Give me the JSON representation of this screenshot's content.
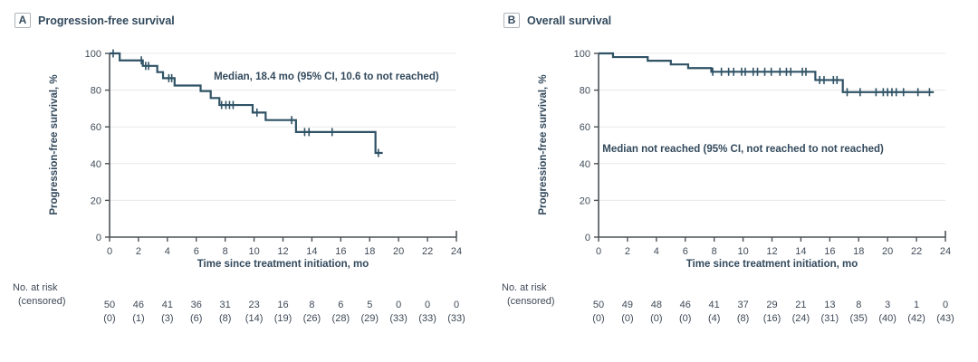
{
  "chart_data": [
    {
      "type": "line",
      "subtype": "kaplan_meier_step",
      "panel_label": "A",
      "title": "Progression-free survival",
      "annotation": "Median, 18.4 mo (95% CI, 10.6 to not reached)",
      "annotation_anchor": {
        "x_mo": 15.0,
        "y_pct": 87
      },
      "xlabel": "Time since treatment initiation, mo",
      "ylabel": "Progression-free survival, %",
      "xlim": [
        0,
        24
      ],
      "ylim": [
        0,
        100
      ],
      "xticks": [
        0,
        2,
        4,
        6,
        8,
        10,
        12,
        14,
        16,
        18,
        20,
        22,
        24
      ],
      "yticks": [
        0,
        20,
        40,
        60,
        80,
        100
      ],
      "grid": "horizontal",
      "legend": "none",
      "line_color": "#2f5265",
      "steps": [
        [
          0,
          100
        ],
        [
          0.7,
          96.2
        ],
        [
          2.3,
          93.2
        ],
        [
          3.3,
          89.8
        ],
        [
          3.7,
          86.5
        ],
        [
          4.5,
          82.5
        ],
        [
          6.3,
          79.5
        ],
        [
          7.0,
          75.7
        ],
        [
          7.6,
          71.9
        ],
        [
          9.9,
          67.8
        ],
        [
          10.8,
          63.7
        ],
        [
          12.9,
          57.2
        ],
        [
          18.4,
          45.8
        ]
      ],
      "curve_end_mo": 18.9,
      "censor_marks": [
        [
          0.25,
          100
        ],
        [
          2.2,
          96.2
        ],
        [
          2.5,
          93.2
        ],
        [
          2.7,
          93.2
        ],
        [
          4.1,
          86.5
        ],
        [
          4.3,
          86.5
        ],
        [
          7.75,
          71.9
        ],
        [
          8.05,
          71.9
        ],
        [
          8.3,
          71.9
        ],
        [
          8.55,
          71.9
        ],
        [
          10.2,
          67.8
        ],
        [
          12.6,
          63.7
        ],
        [
          13.5,
          57.2
        ],
        [
          13.8,
          57.2
        ],
        [
          15.4,
          57.2
        ],
        [
          18.6,
          45.8
        ]
      ],
      "at_risk_label": "No. at risk",
      "censored_label": "(censored)",
      "at_risk_months": [
        0,
        2,
        4,
        6,
        8,
        10,
        12,
        14,
        16,
        18,
        20,
        22,
        24
      ],
      "at_risk": [
        50,
        46,
        41,
        36,
        31,
        23,
        16,
        8,
        6,
        5,
        0,
        0,
        0
      ],
      "censored": [
        0,
        1,
        3,
        6,
        8,
        14,
        19,
        26,
        28,
        29,
        33,
        33,
        33
      ]
    },
    {
      "type": "line",
      "subtype": "kaplan_meier_step",
      "panel_label": "B",
      "title": "Overall survival",
      "annotation": "Median not reached (95% CI, not reached to not reached)",
      "annotation_anchor": {
        "x_mo": 10.0,
        "y_pct": 48
      },
      "xlabel": "Time since treatment initiation, mo",
      "ylabel": "Progression-free survival, %",
      "xlim": [
        0,
        24
      ],
      "ylim": [
        0,
        100
      ],
      "xticks": [
        0,
        2,
        4,
        6,
        8,
        10,
        12,
        14,
        16,
        18,
        20,
        22,
        24
      ],
      "yticks": [
        0,
        20,
        40,
        60,
        80,
        100
      ],
      "grid": "horizontal",
      "legend": "none",
      "line_color": "#2f5265",
      "steps": [
        [
          0,
          100
        ],
        [
          1.0,
          98
        ],
        [
          3.4,
          96
        ],
        [
          5.0,
          94
        ],
        [
          6.2,
          92
        ],
        [
          7.8,
          90
        ],
        [
          15.0,
          85.5
        ],
        [
          16.9,
          78.9
        ]
      ],
      "curve_end_mo": 23.2,
      "censor_marks": [
        [
          7.9,
          90
        ],
        [
          8.5,
          90
        ],
        [
          9.0,
          90
        ],
        [
          9.35,
          90
        ],
        [
          9.9,
          90
        ],
        [
          10.15,
          90
        ],
        [
          10.7,
          90
        ],
        [
          11.0,
          90
        ],
        [
          11.5,
          90
        ],
        [
          11.95,
          90
        ],
        [
          12.55,
          90
        ],
        [
          13.0,
          90
        ],
        [
          13.3,
          90
        ],
        [
          14.1,
          90
        ],
        [
          14.35,
          90
        ],
        [
          15.3,
          85.5
        ],
        [
          15.6,
          85.5
        ],
        [
          16.25,
          85.5
        ],
        [
          16.5,
          85.5
        ],
        [
          17.2,
          78.9
        ],
        [
          18.1,
          78.9
        ],
        [
          19.2,
          78.9
        ],
        [
          19.7,
          78.9
        ],
        [
          20.0,
          78.9
        ],
        [
          20.3,
          78.9
        ],
        [
          20.6,
          78.9
        ],
        [
          21.1,
          78.9
        ],
        [
          22.1,
          78.9
        ],
        [
          22.9,
          78.9
        ]
      ],
      "at_risk_label": "No. at risk",
      "censored_label": "(censored)",
      "at_risk_months": [
        0,
        2,
        4,
        6,
        8,
        10,
        12,
        14,
        16,
        18,
        20,
        22,
        24
      ],
      "at_risk": [
        50,
        49,
        48,
        46,
        41,
        37,
        29,
        21,
        13,
        8,
        3,
        1,
        0
      ],
      "censored": [
        0,
        0,
        0,
        0,
        4,
        8,
        16,
        24,
        31,
        35,
        40,
        42,
        43
      ]
    }
  ],
  "colors": {
    "curve": "#2f5265",
    "title_text": "#32495c",
    "tick_text": "#414c59",
    "axis_line": "#4c5257",
    "gridline": "#e7e8ea",
    "badge_border": "#aeb4ba",
    "background": "#ffffff"
  }
}
